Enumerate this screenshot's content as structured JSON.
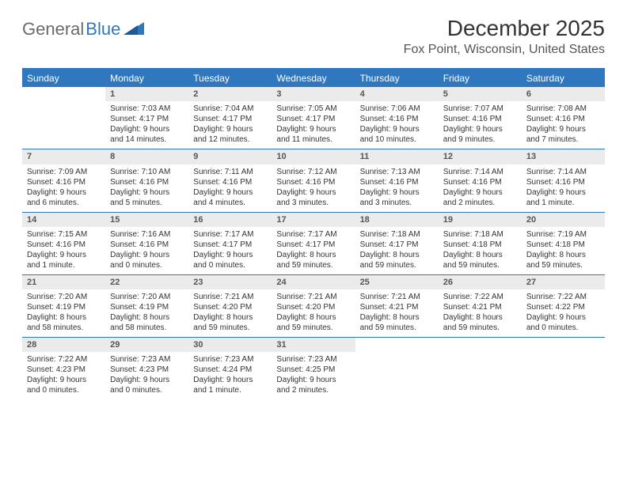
{
  "brand": {
    "part1": "General",
    "part2": "Blue"
  },
  "title": "December 2025",
  "location": "Fox Point, Wisconsin, United States",
  "colors": {
    "accent": "#2f78bf",
    "header_bg": "#2f78bf",
    "header_text": "#ffffff",
    "daynum_bg": "#ebebeb",
    "daynum_text": "#555555",
    "body_text": "#333333",
    "border": "#2f78bf"
  },
  "weekdays": [
    "Sunday",
    "Monday",
    "Tuesday",
    "Wednesday",
    "Thursday",
    "Friday",
    "Saturday"
  ],
  "weeks": [
    [
      null,
      {
        "n": "1",
        "sr": "Sunrise: 7:03 AM",
        "ss": "Sunset: 4:17 PM",
        "dl": "Daylight: 9 hours and 14 minutes."
      },
      {
        "n": "2",
        "sr": "Sunrise: 7:04 AM",
        "ss": "Sunset: 4:17 PM",
        "dl": "Daylight: 9 hours and 12 minutes."
      },
      {
        "n": "3",
        "sr": "Sunrise: 7:05 AM",
        "ss": "Sunset: 4:17 PM",
        "dl": "Daylight: 9 hours and 11 minutes."
      },
      {
        "n": "4",
        "sr": "Sunrise: 7:06 AM",
        "ss": "Sunset: 4:16 PM",
        "dl": "Daylight: 9 hours and 10 minutes."
      },
      {
        "n": "5",
        "sr": "Sunrise: 7:07 AM",
        "ss": "Sunset: 4:16 PM",
        "dl": "Daylight: 9 hours and 9 minutes."
      },
      {
        "n": "6",
        "sr": "Sunrise: 7:08 AM",
        "ss": "Sunset: 4:16 PM",
        "dl": "Daylight: 9 hours and 7 minutes."
      }
    ],
    [
      {
        "n": "7",
        "sr": "Sunrise: 7:09 AM",
        "ss": "Sunset: 4:16 PM",
        "dl": "Daylight: 9 hours and 6 minutes."
      },
      {
        "n": "8",
        "sr": "Sunrise: 7:10 AM",
        "ss": "Sunset: 4:16 PM",
        "dl": "Daylight: 9 hours and 5 minutes."
      },
      {
        "n": "9",
        "sr": "Sunrise: 7:11 AM",
        "ss": "Sunset: 4:16 PM",
        "dl": "Daylight: 9 hours and 4 minutes."
      },
      {
        "n": "10",
        "sr": "Sunrise: 7:12 AM",
        "ss": "Sunset: 4:16 PM",
        "dl": "Daylight: 9 hours and 3 minutes."
      },
      {
        "n": "11",
        "sr": "Sunrise: 7:13 AM",
        "ss": "Sunset: 4:16 PM",
        "dl": "Daylight: 9 hours and 3 minutes."
      },
      {
        "n": "12",
        "sr": "Sunrise: 7:14 AM",
        "ss": "Sunset: 4:16 PM",
        "dl": "Daylight: 9 hours and 2 minutes."
      },
      {
        "n": "13",
        "sr": "Sunrise: 7:14 AM",
        "ss": "Sunset: 4:16 PM",
        "dl": "Daylight: 9 hours and 1 minute."
      }
    ],
    [
      {
        "n": "14",
        "sr": "Sunrise: 7:15 AM",
        "ss": "Sunset: 4:16 PM",
        "dl": "Daylight: 9 hours and 1 minute."
      },
      {
        "n": "15",
        "sr": "Sunrise: 7:16 AM",
        "ss": "Sunset: 4:16 PM",
        "dl": "Daylight: 9 hours and 0 minutes."
      },
      {
        "n": "16",
        "sr": "Sunrise: 7:17 AM",
        "ss": "Sunset: 4:17 PM",
        "dl": "Daylight: 9 hours and 0 minutes."
      },
      {
        "n": "17",
        "sr": "Sunrise: 7:17 AM",
        "ss": "Sunset: 4:17 PM",
        "dl": "Daylight: 8 hours and 59 minutes."
      },
      {
        "n": "18",
        "sr": "Sunrise: 7:18 AM",
        "ss": "Sunset: 4:17 PM",
        "dl": "Daylight: 8 hours and 59 minutes."
      },
      {
        "n": "19",
        "sr": "Sunrise: 7:18 AM",
        "ss": "Sunset: 4:18 PM",
        "dl": "Daylight: 8 hours and 59 minutes."
      },
      {
        "n": "20",
        "sr": "Sunrise: 7:19 AM",
        "ss": "Sunset: 4:18 PM",
        "dl": "Daylight: 8 hours and 59 minutes."
      }
    ],
    [
      {
        "n": "21",
        "sr": "Sunrise: 7:20 AM",
        "ss": "Sunset: 4:19 PM",
        "dl": "Daylight: 8 hours and 58 minutes."
      },
      {
        "n": "22",
        "sr": "Sunrise: 7:20 AM",
        "ss": "Sunset: 4:19 PM",
        "dl": "Daylight: 8 hours and 58 minutes."
      },
      {
        "n": "23",
        "sr": "Sunrise: 7:21 AM",
        "ss": "Sunset: 4:20 PM",
        "dl": "Daylight: 8 hours and 59 minutes."
      },
      {
        "n": "24",
        "sr": "Sunrise: 7:21 AM",
        "ss": "Sunset: 4:20 PM",
        "dl": "Daylight: 8 hours and 59 minutes."
      },
      {
        "n": "25",
        "sr": "Sunrise: 7:21 AM",
        "ss": "Sunset: 4:21 PM",
        "dl": "Daylight: 8 hours and 59 minutes."
      },
      {
        "n": "26",
        "sr": "Sunrise: 7:22 AM",
        "ss": "Sunset: 4:21 PM",
        "dl": "Daylight: 8 hours and 59 minutes."
      },
      {
        "n": "27",
        "sr": "Sunrise: 7:22 AM",
        "ss": "Sunset: 4:22 PM",
        "dl": "Daylight: 9 hours and 0 minutes."
      }
    ],
    [
      {
        "n": "28",
        "sr": "Sunrise: 7:22 AM",
        "ss": "Sunset: 4:23 PM",
        "dl": "Daylight: 9 hours and 0 minutes."
      },
      {
        "n": "29",
        "sr": "Sunrise: 7:23 AM",
        "ss": "Sunset: 4:23 PM",
        "dl": "Daylight: 9 hours and 0 minutes."
      },
      {
        "n": "30",
        "sr": "Sunrise: 7:23 AM",
        "ss": "Sunset: 4:24 PM",
        "dl": "Daylight: 9 hours and 1 minute."
      },
      {
        "n": "31",
        "sr": "Sunrise: 7:23 AM",
        "ss": "Sunset: 4:25 PM",
        "dl": "Daylight: 9 hours and 2 minutes."
      },
      null,
      null,
      null
    ]
  ]
}
